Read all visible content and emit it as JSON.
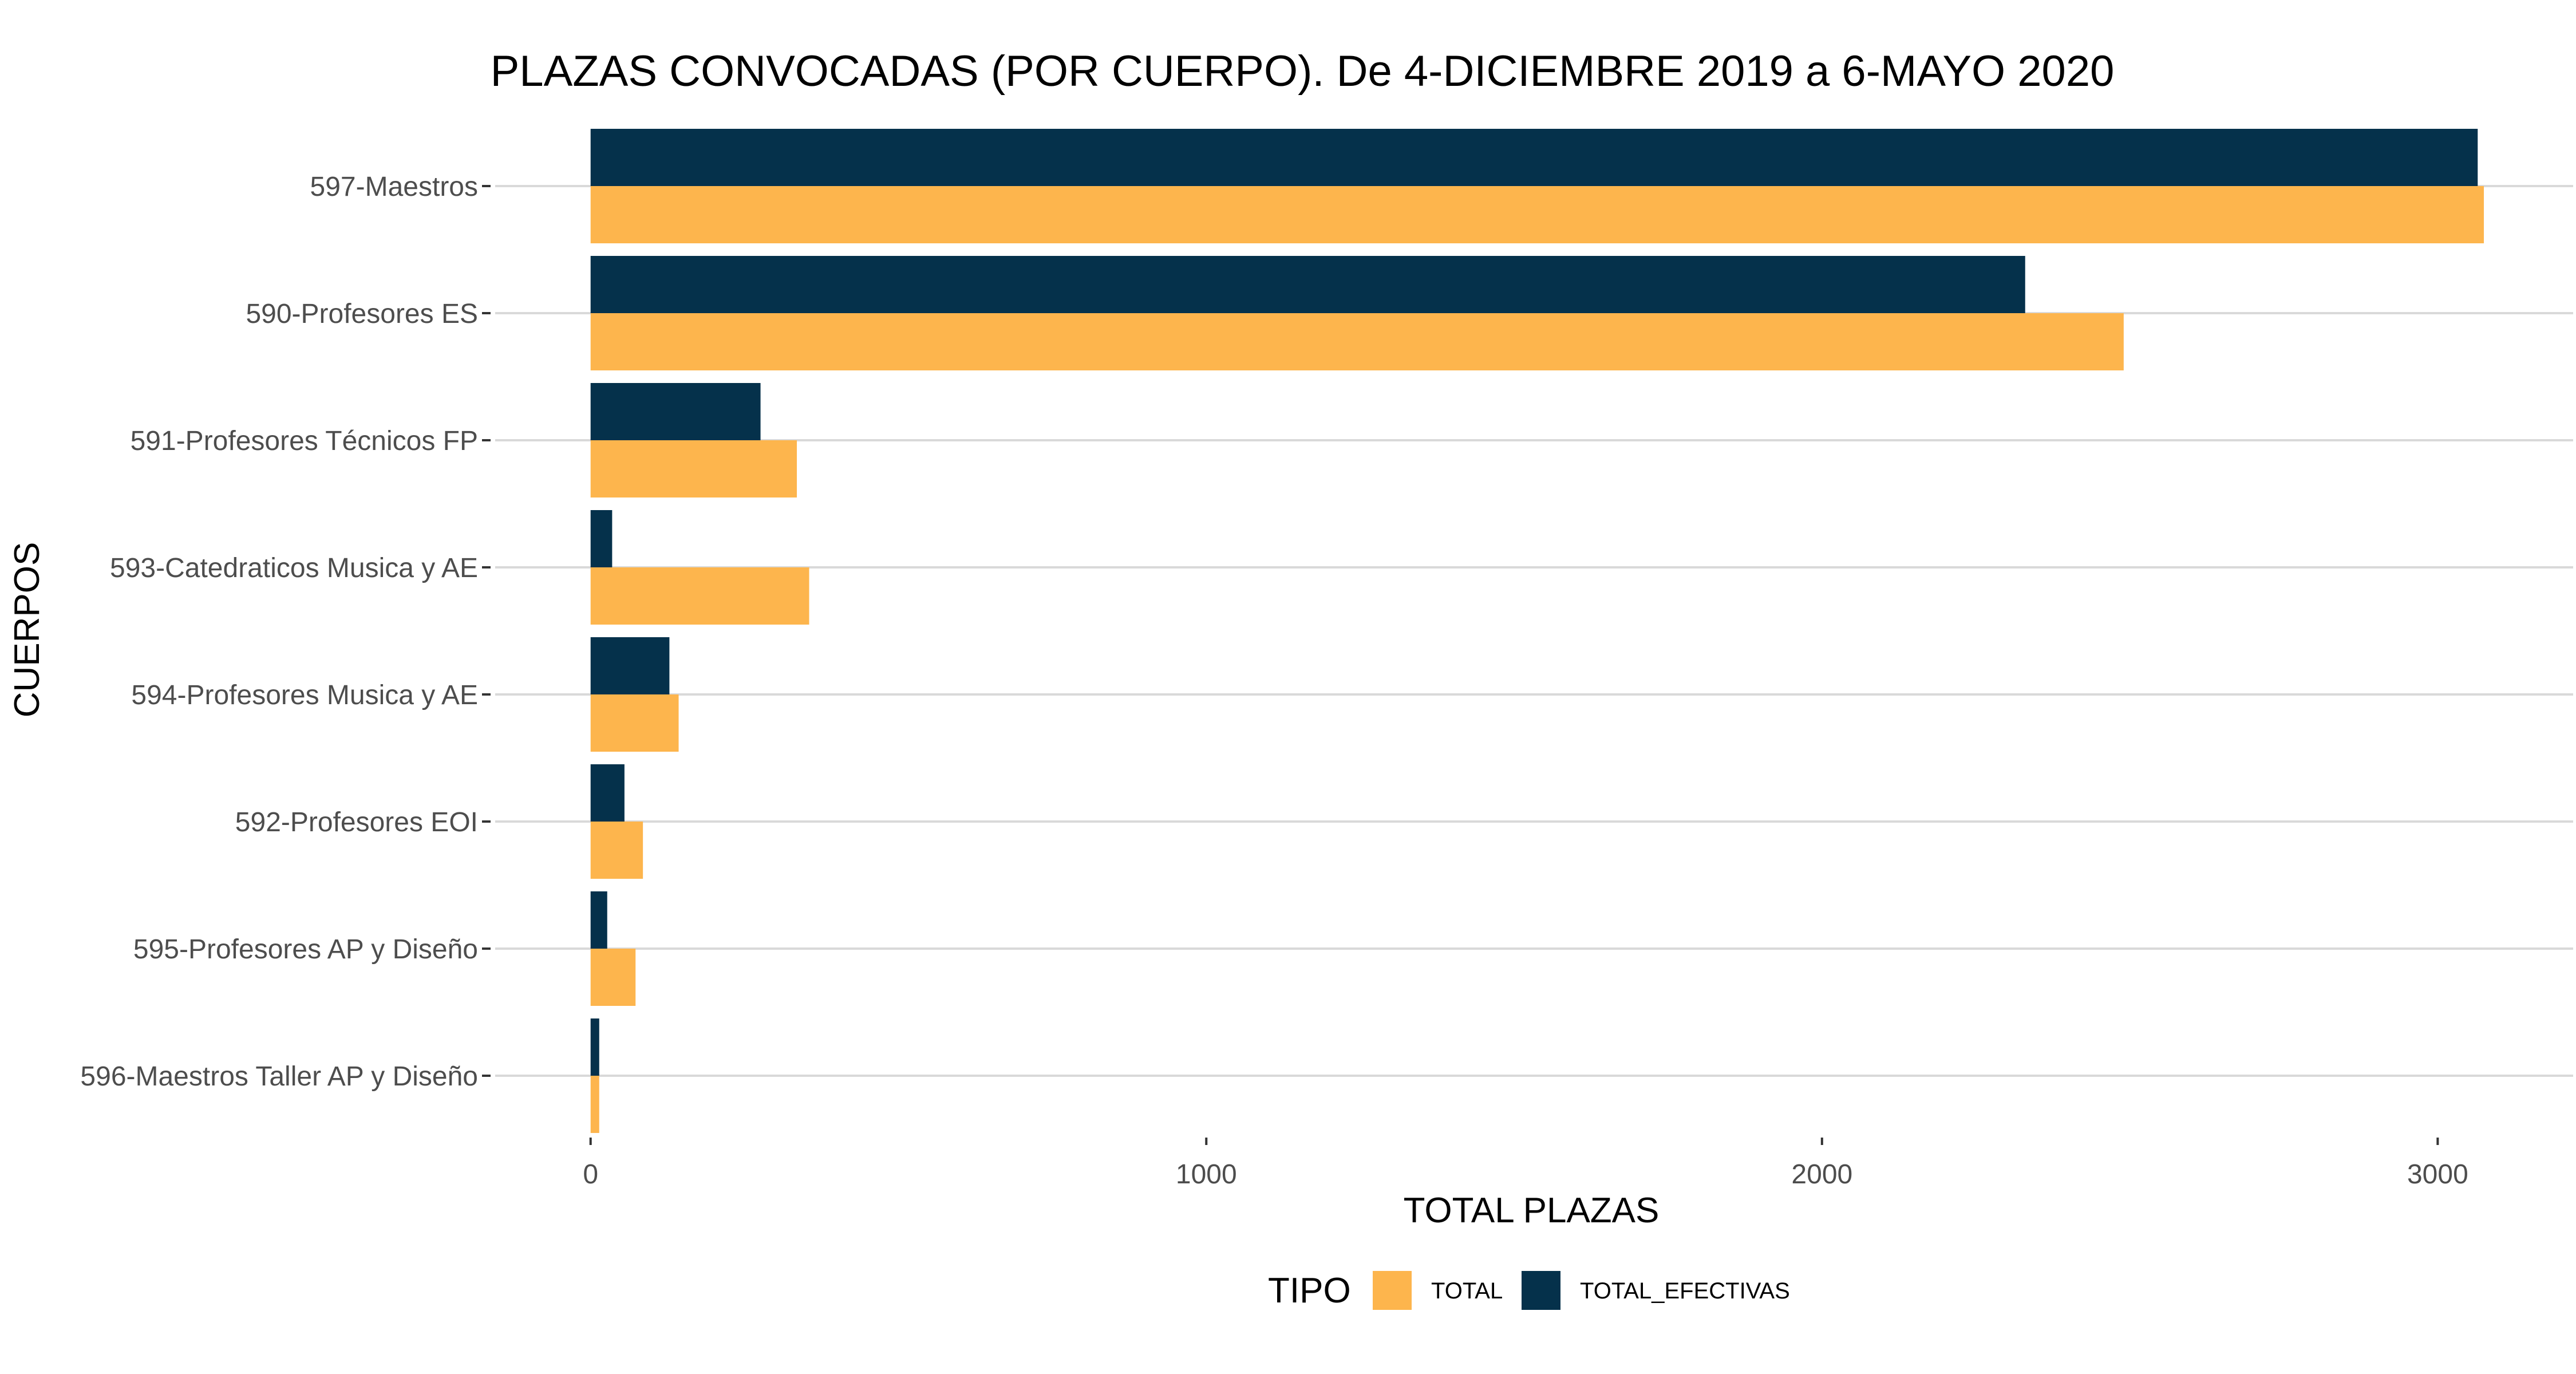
{
  "chart_data": {
    "type": "bar",
    "orientation": "horizontal",
    "title": "PLAZAS CONVOCADAS (POR CUERPO).  De 4-DICIEMBRE 2019 a 6-MAYO 2020",
    "xlabel": "TOTAL PLAZAS",
    "ylabel": "CUERPOS",
    "xlim": [
      -155,
      3220
    ],
    "xticks": [
      0,
      1000,
      2000,
      3000
    ],
    "categories": [
      "597-Maestros",
      "590-Profesores ES",
      "591-Profesores Técnicos FP",
      "593-Catedraticos Musica y AE",
      "594-Profesores Musica y AE",
      "592-Profesores EOI",
      "595-Profesores AP y Diseño",
      "596-Maestros Taller AP y Diseño"
    ],
    "series": [
      {
        "name": "TOTAL_EFECTIVAS",
        "color": "#05314b",
        "values": [
          3065,
          2330,
          276,
          35,
          128,
          55,
          27,
          14
        ]
      },
      {
        "name": "TOTAL",
        "color": "#fdb54d",
        "values": [
          3075,
          2490,
          335,
          355,
          143,
          85,
          73,
          14
        ]
      }
    ],
    "legend": {
      "title": "TIPO",
      "position": "bottom",
      "entries": [
        {
          "label": "TOTAL",
          "color": "#fdb54d"
        },
        {
          "label": "TOTAL_EFECTIVAS",
          "color": "#05314b"
        }
      ]
    },
    "grid": "major-y"
  }
}
